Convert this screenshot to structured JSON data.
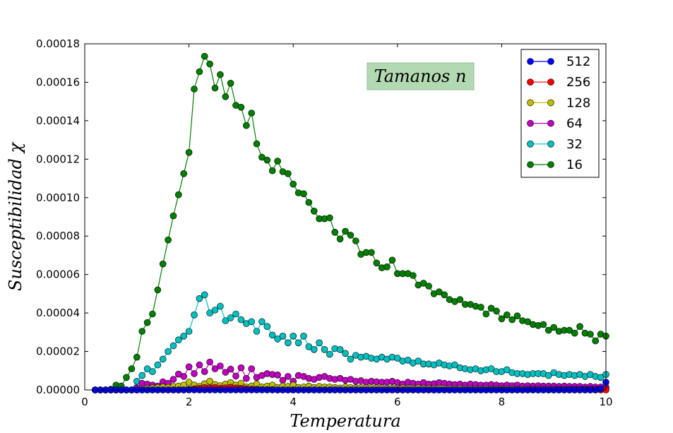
{
  "chart_data": {
    "type": "line",
    "xlabel": "Temperatura",
    "ylabel": "Susceptibilidad χ",
    "xlim": [
      0,
      10
    ],
    "ylim": [
      0,
      0.00018
    ],
    "x_ticks": [
      "0",
      "2",
      "4",
      "6",
      "8",
      "10"
    ],
    "y_ticks": [
      "0.00000",
      "0.00002",
      "0.00004",
      "0.00006",
      "0.00008",
      "0.00010",
      "0.00012",
      "0.00014",
      "0.00016",
      "0.00018"
    ],
    "annotation": "Tamanos n",
    "legend_position": "top-right",
    "grid": false,
    "x": [
      0.2,
      0.3,
      0.4,
      0.5,
      0.6,
      0.7,
      0.8,
      0.9,
      1.0,
      1.1,
      1.2,
      1.3,
      1.4,
      1.5,
      1.6,
      1.7,
      1.8,
      1.9,
      2.0,
      2.1,
      2.2,
      2.3,
      2.4,
      2.5,
      2.6,
      2.7,
      2.8,
      2.9,
      3.0,
      3.1,
      3.2,
      3.3,
      3.4,
      3.5,
      3.6,
      3.7,
      3.8,
      3.9,
      4.0,
      4.1,
      4.2,
      4.3,
      4.4,
      4.5,
      4.6,
      4.7,
      4.8,
      4.9,
      5.0,
      5.1,
      5.2,
      5.3,
      5.4,
      5.5,
      5.6,
      5.7,
      5.8,
      5.9,
      6.0,
      6.1,
      6.2,
      6.3,
      6.4,
      6.5,
      6.6,
      6.7,
      6.8,
      6.9,
      7.0,
      7.1,
      7.2,
      7.3,
      7.4,
      7.5,
      7.6,
      7.7,
      7.8,
      7.9,
      8.0,
      8.1,
      8.2,
      8.3,
      8.4,
      8.5,
      8.6,
      8.7,
      8.8,
      8.9,
      9.0,
      9.1,
      9.2,
      9.3,
      9.4,
      9.5,
      9.6,
      9.7,
      9.8,
      9.9,
      10.0
    ],
    "series": [
      {
        "name": "512",
        "color": "#0000ff",
        "values": [
          0,
          0,
          0,
          0,
          0,
          0,
          0,
          0,
          0,
          0,
          0,
          0,
          0,
          0,
          0,
          0,
          0,
          0,
          0,
          0,
          0,
          0,
          0,
          0,
          0,
          0,
          0,
          0,
          0,
          0,
          0,
          0,
          0,
          0,
          0,
          0,
          0,
          0,
          0,
          0,
          0,
          0,
          0,
          0,
          0,
          0,
          0,
          0,
          0,
          0,
          0,
          0,
          0,
          0,
          0,
          0,
          0,
          0,
          0,
          0,
          0,
          0,
          0,
          0,
          0,
          0,
          0,
          0,
          0,
          0,
          0,
          0,
          0,
          0,
          0,
          0,
          0,
          0,
          0,
          0,
          0,
          0,
          0,
          0,
          0,
          0,
          0,
          0,
          0,
          0,
          0,
          0,
          0,
          0,
          0,
          0,
          0,
          5e-07,
          4e-06
        ]
      },
      {
        "name": "256",
        "color": "#ff0000",
        "values": [
          0,
          0,
          0,
          0,
          0,
          0,
          0,
          0,
          0,
          0,
          0,
          0,
          0,
          0,
          0,
          0,
          0,
          0,
          3e-07,
          5e-07,
          8e-07,
          1.2e-06,
          1e-06,
          1.3e-06,
          9e-07,
          1.1e-06,
          1.4e-06,
          1e-06,
          8e-07,
          6e-07,
          4e-07,
          3e-07,
          2e-07,
          2e-07,
          1e-07,
          0,
          0,
          0,
          0,
          0,
          0,
          0,
          0,
          0,
          0,
          0,
          0,
          0,
          0,
          0,
          0,
          0,
          0,
          0,
          0,
          0,
          0,
          0,
          0,
          0,
          0,
          0,
          0,
          0,
          0,
          0,
          0,
          0,
          0,
          0,
          0,
          0,
          0,
          0,
          0,
          0,
          0,
          0,
          0,
          0,
          0,
          0,
          0,
          0,
          0,
          0,
          0,
          0,
          0,
          0,
          0,
          0,
          0,
          0,
          0,
          0,
          0,
          0,
          0
        ]
      },
      {
        "name": "128",
        "color": "#bfbf00",
        "values": [
          0,
          0,
          0,
          0,
          0,
          0,
          0,
          0,
          0,
          5e-07,
          8e-07,
          1e-06,
          1.2e-06,
          1.5e-06,
          1.3e-06,
          1.8e-06,
          2e-06,
          2.5e-06,
          4e-06,
          2.5e-06,
          1.8e-06,
          3.2e-06,
          4.5e-06,
          2.8e-06,
          2.2e-06,
          3e-06,
          3.8e-06,
          2.5e-06,
          3.5e-06,
          1.5e-06,
          2e-06,
          3e-06,
          1.5e-06,
          2e-06,
          2.5e-06,
          1.2e-06,
          2e-06,
          1.8e-06,
          2.5e-06,
          1.2e-06,
          1.5e-06,
          2e-06,
          1.2e-06,
          1.8e-06,
          1.5e-06,
          1.5e-06,
          1.2e-06,
          1e-06,
          1.5e-06,
          1.2e-06,
          1e-06,
          1.2e-06,
          1e-06,
          1.2e-06,
          1e-06,
          1e-06,
          8e-07,
          1e-06,
          8e-07,
          1e-06,
          8e-07,
          8e-07,
          1e-06,
          8e-07,
          8e-07,
          7e-07,
          8e-07,
          7e-07,
          7e-07,
          6e-07,
          7e-07,
          6e-07,
          6e-07,
          6e-07,
          5e-07,
          6e-07,
          5e-07,
          5e-07,
          5e-07,
          5e-07,
          5e-07,
          4e-07,
          5e-07,
          4e-07,
          4e-07,
          4e-07,
          4e-07,
          4e-07,
          4e-07,
          3e-07,
          4e-07,
          3e-07,
          3e-07,
          3e-07,
          3e-07,
          3e-07,
          3e-07,
          3e-07,
          3e-07
        ]
      },
      {
        "name": "64",
        "color": "#bf00bf",
        "values": [
          0,
          0,
          0,
          0,
          0,
          0,
          0,
          0,
          1e-06,
          3.5e-06,
          3e-06,
          2.5e-06,
          2e-06,
          4.2e-06,
          3.5e-06,
          5.5e-06,
          8.2e-06,
          7e-06,
          1.2e-05,
          8.5e-06,
          1.3e-05,
          9.5e-06,
          1.45e-05,
          1.1e-05,
          1.25e-05,
          9.2e-06,
          1.08e-05,
          7.2e-06,
          1.15e-05,
          6e-06,
          1.1e-05,
          6.5e-06,
          7.5e-06,
          8.5e-06,
          8e-06,
          7.8e-06,
          5e-06,
          7e-06,
          4.5e-06,
          7.5e-06,
          7e-06,
          6e-06,
          5.5e-06,
          6.5e-06,
          7e-06,
          6e-06,
          5.5e-06,
          6e-06,
          5e-06,
          5.5e-06,
          4.5e-06,
          4.8e-06,
          4e-06,
          4.5e-06,
          4.2e-06,
          4e-06,
          4e-06,
          4.5e-06,
          3.8e-06,
          3e-06,
          4e-06,
          3.5e-06,
          3e-06,
          3.8e-06,
          3e-06,
          3.2e-06,
          3.8e-06,
          3.5e-06,
          3e-06,
          2.8e-06,
          3e-06,
          2.5e-06,
          3e-06,
          2.8e-06,
          2.5e-06,
          2.5e-06,
          2.8e-06,
          2.5e-06,
          2.2e-06,
          2.5e-06,
          2.2e-06,
          2.5e-06,
          2e-06,
          2.2e-06,
          2e-06,
          2.2e-06,
          2e-06,
          2e-06,
          2e-06,
          1.8e-06,
          2e-06,
          1.8e-06,
          1.8e-06,
          1.8e-06,
          1.5e-06,
          1.8e-06,
          1.5e-06,
          1.5e-06,
          1.5e-06
        ]
      },
      {
        "name": "32",
        "color": "#00bfbf",
        "values": [
          0,
          0,
          0,
          0,
          0,
          0,
          0,
          0,
          4.5e-06,
          7.5e-06,
          1.1e-05,
          9.5e-06,
          1.3e-05,
          1.6e-05,
          2e-05,
          2.3e-05,
          2.6e-05,
          2.8e-05,
          3.05e-05,
          3.9e-05,
          4.75e-05,
          4.95e-05,
          4e-05,
          4.15e-05,
          4.35e-05,
          3.6e-05,
          3.75e-05,
          3.95e-05,
          3.65e-05,
          3.45e-05,
          3.55e-05,
          3.05e-05,
          3.55e-05,
          3.3e-05,
          2.85e-05,
          2.65e-05,
          2.8e-05,
          2.45e-05,
          2.8e-05,
          2.45e-05,
          2.8e-05,
          2.25e-05,
          2.1e-05,
          2.45e-05,
          2.1e-05,
          1.85e-05,
          2.15e-05,
          2.1e-05,
          1.9e-05,
          1.6e-05,
          1.8e-05,
          1.7e-05,
          1.75e-05,
          1.65e-05,
          1.6e-05,
          1.7e-05,
          1.6e-05,
          1.7e-05,
          1.65e-05,
          1.5e-05,
          1.55e-05,
          1.4e-05,
          1.5e-05,
          1.35e-05,
          1.35e-05,
          1.3e-05,
          1.4e-05,
          1.3e-05,
          1.25e-05,
          1.3e-05,
          1.15e-05,
          1.1e-05,
          1.05e-05,
          1.1e-05,
          1e-05,
          1.05e-05,
          1.1e-05,
          9.5e-06,
          9.5e-06,
          1.05e-05,
          9e-06,
          8.5e-06,
          8.5e-06,
          8e-06,
          8.5e-06,
          8.5e-06,
          8.5e-06,
          7.5e-06,
          9e-06,
          8e-06,
          7.5e-06,
          8e-06,
          7.5e-06,
          8e-06,
          7e-06,
          8e-06,
          7e-06,
          6.5e-06,
          8e-06
        ]
      },
      {
        "name": "16",
        "color": "#007f00",
        "values": [
          0,
          0,
          0,
          3e-07,
          2.5e-06,
          2e-06,
          6.5e-06,
          1.1e-05,
          1.7e-05,
          3.05e-05,
          3.5e-05,
          3.95e-05,
          5.2e-05,
          6.55e-05,
          7.8e-05,
          9.05e-05,
          0.0001015,
          0.0001125,
          0.0001235,
          0.0001565,
          0.0001655,
          0.0001735,
          0.0001695,
          0.000157,
          0.000164,
          0.0001525,
          0.0001595,
          0.000148,
          0.000147,
          0.0001375,
          0.000144,
          0.000128,
          0.000121,
          0.0001195,
          0.000114,
          0.000119,
          0.0001135,
          0.0001125,
          0.000107,
          0.0001025,
          0.000102,
          9.75e-05,
          9.3e-05,
          8.9e-05,
          8.9e-05,
          8.95e-05,
          8.2e-05,
          7.85e-05,
          8.25e-05,
          8.05e-05,
          7.75e-05,
          7.05e-05,
          7.15e-05,
          7.15e-05,
          6.6e-05,
          6.35e-05,
          6.4e-05,
          6.75e-05,
          6.05e-05,
          6.05e-05,
          6.05e-05,
          5.95e-05,
          5.45e-05,
          5.55e-05,
          5.4e-05,
          5e-05,
          5.1e-05,
          4.95e-05,
          4.7e-05,
          4.6e-05,
          4.7e-05,
          4.45e-05,
          4.45e-05,
          4.35e-05,
          4.3e-05,
          3.95e-05,
          4.25e-05,
          4.1e-05,
          3.7e-05,
          3.9e-05,
          3.65e-05,
          3.85e-05,
          3.6e-05,
          3.55e-05,
          3.4e-05,
          3.35e-05,
          3.4e-05,
          3.1e-05,
          3.25e-05,
          3.05e-05,
          3.1e-05,
          3.1e-05,
          2.95e-05,
          3.3e-05,
          2.95e-05,
          2.9e-05,
          2.55e-05,
          2.9e-05,
          2.8e-05
        ]
      }
    ]
  }
}
